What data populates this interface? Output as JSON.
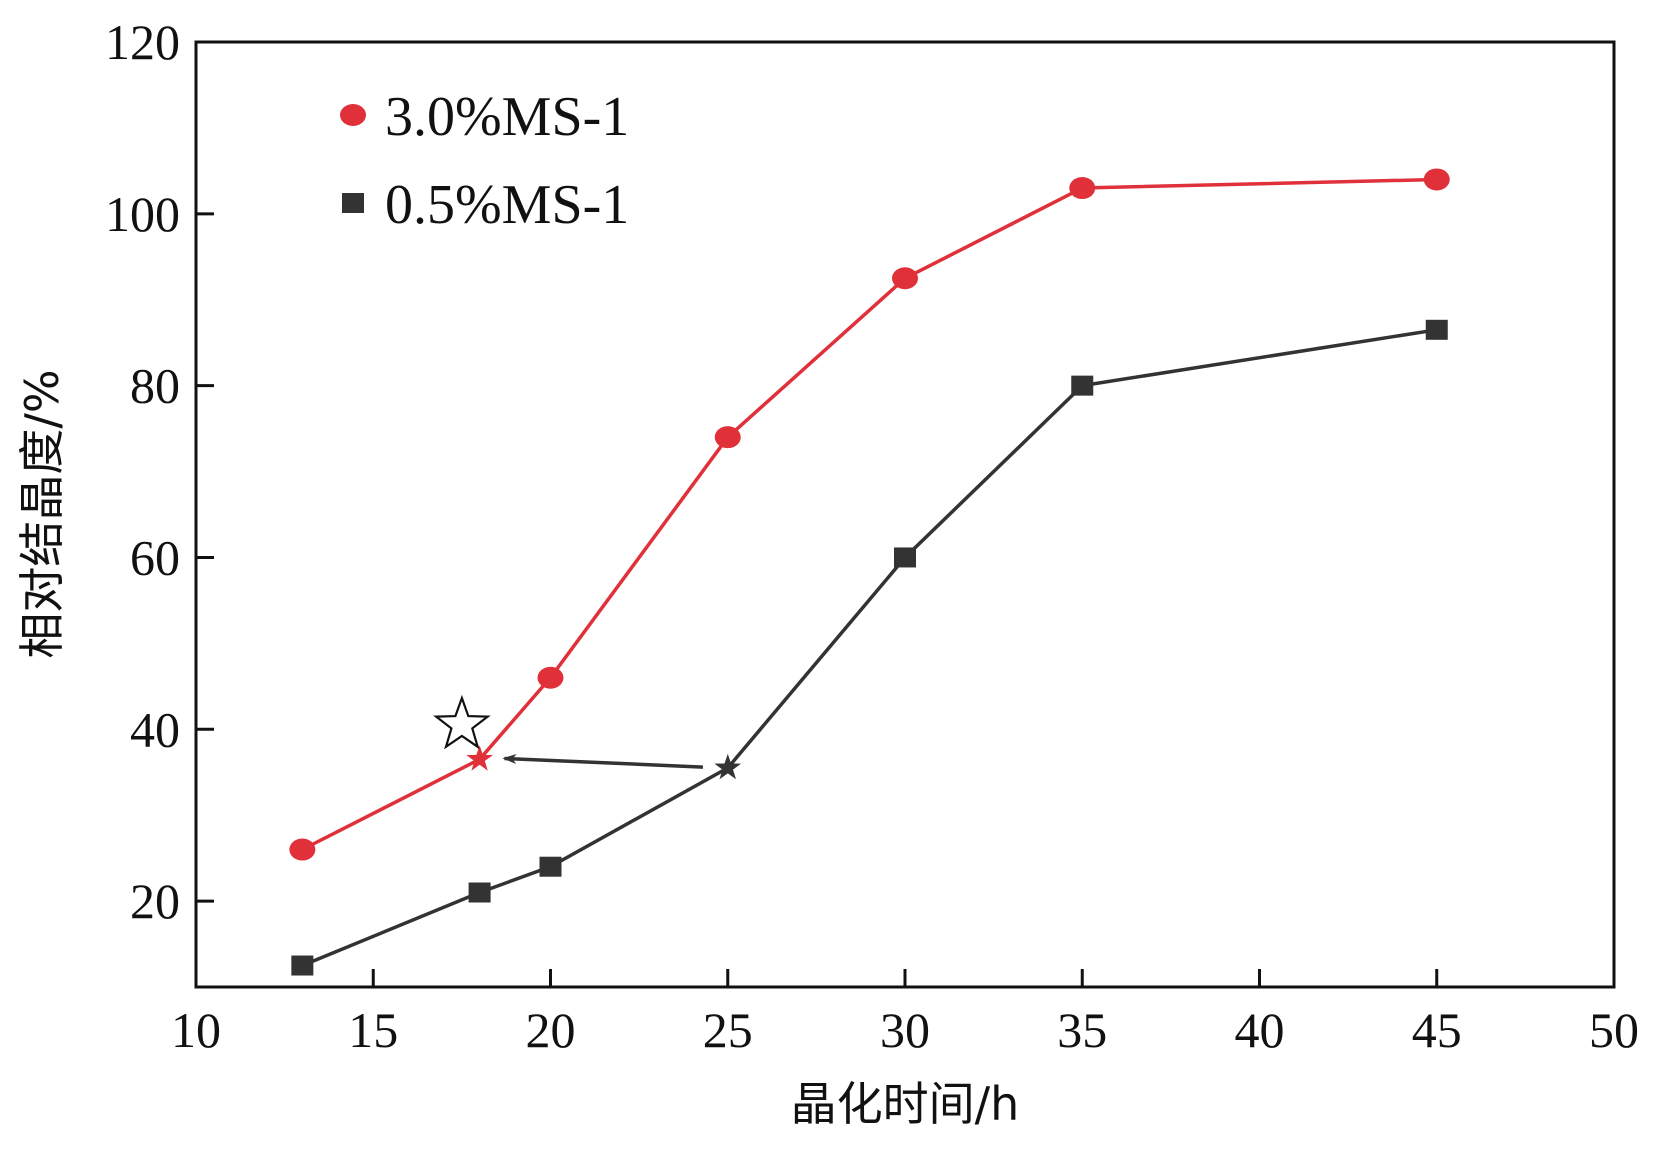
{
  "chart_data": {
    "type": "line",
    "title": "",
    "xlabel": "晶化时间/h",
    "ylabel": "相对结晶度/%",
    "xlim": [
      10,
      50
    ],
    "ylim": [
      10,
      120
    ],
    "xticks": [
      10,
      15,
      20,
      25,
      30,
      35,
      40,
      45,
      50
    ],
    "yticks": [
      20,
      40,
      60,
      80,
      100,
      120
    ],
    "grid": false,
    "legend_position": "top-left",
    "series": [
      {
        "name": "3.0%MS-1",
        "marker": "circle",
        "color": "#e0303a",
        "x": [
          13,
          18,
          20,
          25,
          30,
          35,
          45
        ],
        "y": [
          26,
          36.5,
          46,
          74,
          92.5,
          103,
          104
        ]
      },
      {
        "name": "0.5%MS-1",
        "marker": "square",
        "color": "#333333",
        "x": [
          13,
          18,
          20,
          25,
          30,
          35,
          45
        ],
        "y": [
          12.5,
          21,
          24,
          35.5,
          60,
          80,
          86.5
        ]
      }
    ],
    "annotations": [
      {
        "type": "star-marker",
        "series": "3.0%MS-1",
        "x": 18,
        "y": 36.5
      },
      {
        "type": "star-marker",
        "series": "0.5%MS-1",
        "x": 25,
        "y": 35.5
      },
      {
        "type": "arrow",
        "from": [
          24.3,
          35.6
        ],
        "to": [
          18.7,
          36.6
        ]
      },
      {
        "type": "open-star",
        "x": 17.5,
        "y": 40.5
      }
    ]
  }
}
